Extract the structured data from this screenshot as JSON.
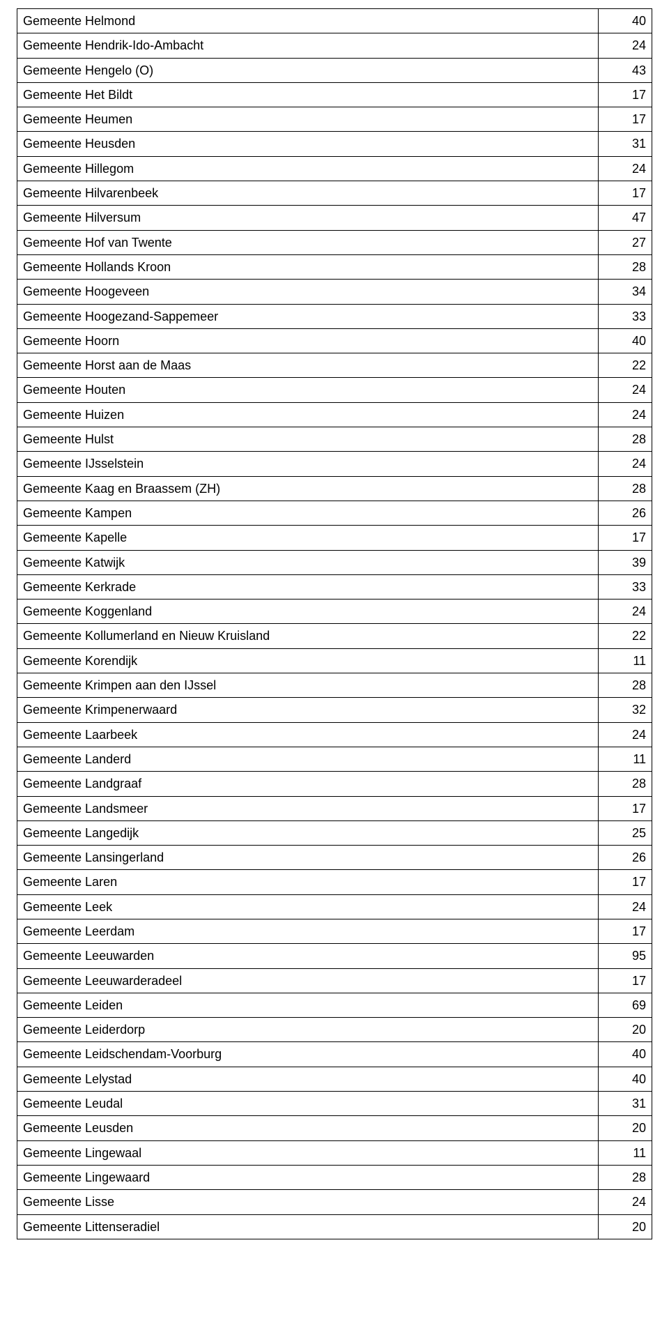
{
  "table": {
    "columns": [
      "name",
      "value"
    ],
    "col_widths": [
      "auto",
      "60px"
    ],
    "col_align": [
      "left",
      "right"
    ],
    "font_family": "Verdana",
    "font_size_pt": 14,
    "border_color": "#000000",
    "background_color": "#ffffff",
    "text_color": "#000000",
    "rows": [
      {
        "name": "Gemeente Helmond",
        "value": 40
      },
      {
        "name": "Gemeente Hendrik-Ido-Ambacht",
        "value": 24
      },
      {
        "name": "Gemeente Hengelo (O)",
        "value": 43
      },
      {
        "name": "Gemeente Het Bildt",
        "value": 17
      },
      {
        "name": "Gemeente Heumen",
        "value": 17
      },
      {
        "name": "Gemeente Heusden",
        "value": 31
      },
      {
        "name": "Gemeente Hillegom",
        "value": 24
      },
      {
        "name": "Gemeente Hilvarenbeek",
        "value": 17
      },
      {
        "name": "Gemeente Hilversum",
        "value": 47
      },
      {
        "name": "Gemeente Hof van Twente",
        "value": 27
      },
      {
        "name": "Gemeente Hollands Kroon",
        "value": 28
      },
      {
        "name": "Gemeente Hoogeveen",
        "value": 34
      },
      {
        "name": "Gemeente Hoogezand-Sappemeer",
        "value": 33
      },
      {
        "name": "Gemeente Hoorn",
        "value": 40
      },
      {
        "name": "Gemeente Horst aan de Maas",
        "value": 22
      },
      {
        "name": "Gemeente Houten",
        "value": 24
      },
      {
        "name": "Gemeente Huizen",
        "value": 24
      },
      {
        "name": "Gemeente Hulst",
        "value": 28
      },
      {
        "name": "Gemeente IJsselstein",
        "value": 24
      },
      {
        "name": "Gemeente Kaag en Braassem (ZH)",
        "value": 28
      },
      {
        "name": "Gemeente Kampen",
        "value": 26
      },
      {
        "name": "Gemeente Kapelle",
        "value": 17
      },
      {
        "name": "Gemeente Katwijk",
        "value": 39
      },
      {
        "name": "Gemeente Kerkrade",
        "value": 33
      },
      {
        "name": "Gemeente Koggenland",
        "value": 24
      },
      {
        "name": "Gemeente Kollumerland en Nieuw Kruisland",
        "value": 22
      },
      {
        "name": "Gemeente Korendijk",
        "value": 11
      },
      {
        "name": "Gemeente Krimpen aan den IJssel",
        "value": 28
      },
      {
        "name": "Gemeente Krimpenerwaard",
        "value": 32
      },
      {
        "name": "Gemeente Laarbeek",
        "value": 24
      },
      {
        "name": "Gemeente Landerd",
        "value": 11
      },
      {
        "name": "Gemeente Landgraaf",
        "value": 28
      },
      {
        "name": "Gemeente Landsmeer",
        "value": 17
      },
      {
        "name": "Gemeente Langedijk",
        "value": 25
      },
      {
        "name": "Gemeente Lansingerland",
        "value": 26
      },
      {
        "name": "Gemeente Laren",
        "value": 17
      },
      {
        "name": "Gemeente Leek",
        "value": 24
      },
      {
        "name": "Gemeente Leerdam",
        "value": 17
      },
      {
        "name": "Gemeente Leeuwarden",
        "value": 95
      },
      {
        "name": "Gemeente Leeuwarderadeel",
        "value": 17
      },
      {
        "name": "Gemeente Leiden",
        "value": 69
      },
      {
        "name": "Gemeente Leiderdorp",
        "value": 20
      },
      {
        "name": "Gemeente Leidschendam-Voorburg",
        "value": 40
      },
      {
        "name": "Gemeente Lelystad",
        "value": 40
      },
      {
        "name": "Gemeente Leudal",
        "value": 31
      },
      {
        "name": "Gemeente Leusden",
        "value": 20
      },
      {
        "name": "Gemeente Lingewaal",
        "value": 11
      },
      {
        "name": "Gemeente Lingewaard",
        "value": 28
      },
      {
        "name": "Gemeente Lisse",
        "value": 24
      },
      {
        "name": "Gemeente Littenseradiel",
        "value": 20
      }
    ]
  }
}
